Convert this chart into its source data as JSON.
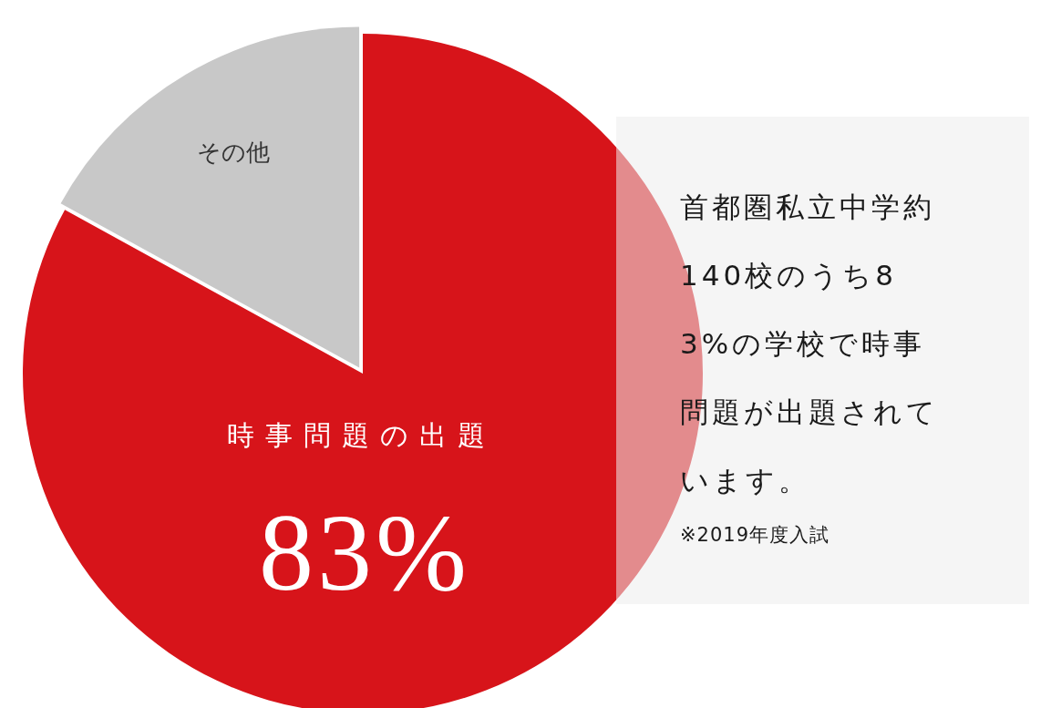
{
  "chart_data": {
    "type": "pie",
    "categories": [
      "時事問題の出題",
      "その他"
    ],
    "values": [
      83,
      17
    ],
    "colors": [
      "#d7141a",
      "#c8c8c8"
    ],
    "value_labels": [
      "83%",
      null
    ],
    "legend": false,
    "annotations": [
      "首都圏私立中学約140校のうち83%の学校で時事問題が出題されています。",
      "※2019年度入試"
    ]
  }
}
